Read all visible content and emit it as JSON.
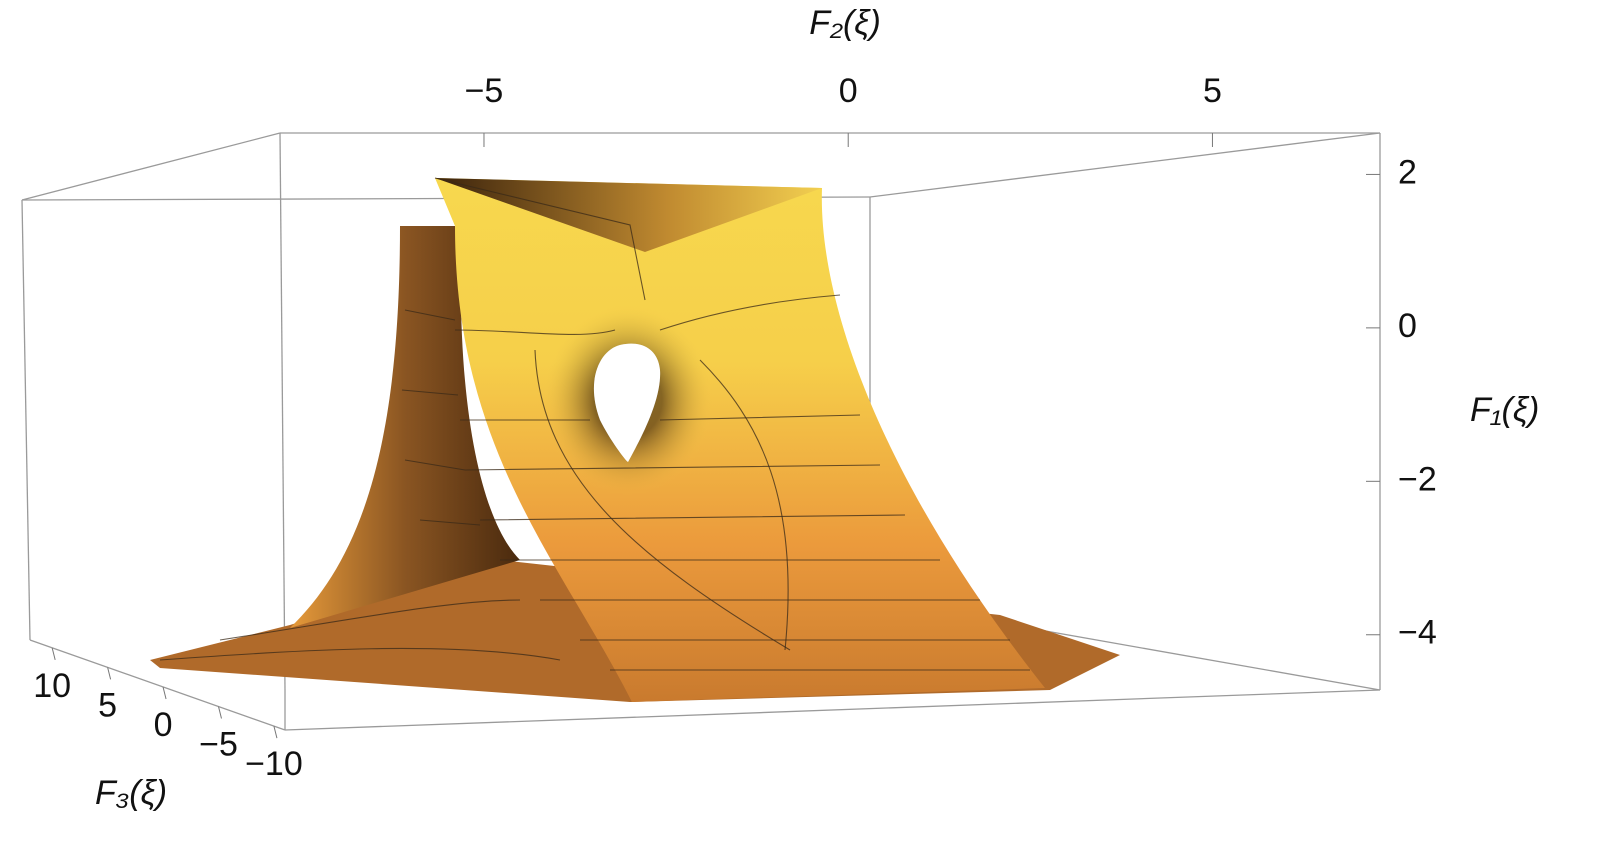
{
  "chart_data": {
    "type": "surface3d",
    "x_label": "F₂(ξ)",
    "y_label": "F₁(ξ)",
    "z_label": "F₃(ξ)",
    "xlim": [
      -7.8,
      7.3
    ],
    "xticks": [
      {
        "value": -5,
        "label": "−5"
      },
      0,
      5
    ],
    "ylim": [
      -4.72,
      2.54
    ],
    "yticks": [
      2,
      0,
      {
        "value": -2,
        "label": "−2"
      },
      {
        "value": -4,
        "label": "−4"
      }
    ],
    "zlim": [
      -11,
      12
    ],
    "zticks": [
      10,
      5,
      0,
      {
        "value": -5,
        "label": "−5"
      },
      {
        "value": -10,
        "label": "−10"
      }
    ]
  }
}
